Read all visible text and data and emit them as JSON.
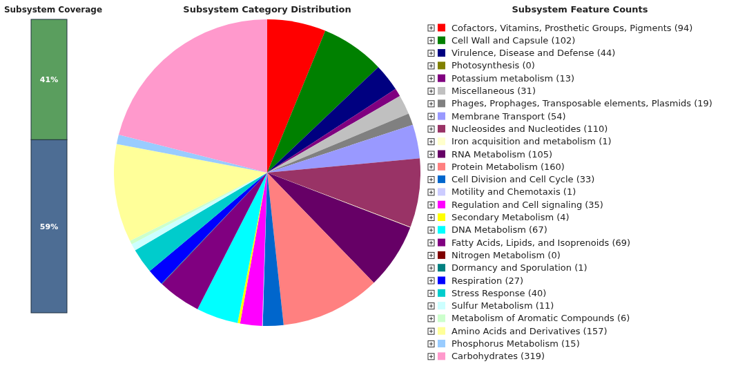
{
  "chart_data": [
    {
      "type": "bar",
      "title": "Subsystem Coverage",
      "stacked": true,
      "categories": [
        null
      ],
      "series": [
        {
          "color": "#4d6d94",
          "values": [
            59
          ],
          "value_labels": [
            "59%"
          ]
        },
        {
          "color": "#5a9e5e",
          "values": [
            41
          ],
          "value_labels": [
            "41%"
          ]
        }
      ]
    },
    {
      "type": "pie",
      "title": "Subsystem Category Distribution",
      "legend_title": "Subsystem Feature Counts",
      "legend": "right",
      "categories": [
        "Cofactors, Vitamins, Prosthetic Groups, Pigments (94)",
        "Cell Wall and Capsule (102)",
        "Virulence, Disease and Defense (44)",
        "Photosynthesis (0)",
        "Potassium metabolism (13)",
        "Miscellaneous (31)",
        "Phages, Prophages, Transposable elements, Plasmids (19)",
        "Membrane Transport (54)",
        "Nucleosides and Nucleotides (110)",
        "Iron acquisition and metabolism (1)",
        "RNA Metabolism (105)",
        "Protein Metabolism (160)",
        "Cell Division and Cell Cycle (33)",
        "Motility and Chemotaxis (1)",
        "Regulation and Cell signaling (35)",
        "Secondary Metabolism (4)",
        "DNA Metabolism (67)",
        "Fatty Acids, Lipids, and Isoprenoids (69)",
        "Nitrogen Metabolism (0)",
        "Dormancy and Sporulation (1)",
        "Respiration (27)",
        "Stress Response (40)",
        "Sulfur Metabolism (11)",
        "Metabolism of Aromatic Compounds (6)",
        "Amino Acids and Derivatives (157)",
        "Phosphorus Metabolism (15)",
        "Carbohydrates (319)"
      ],
      "values": [
        94,
        102,
        44,
        0,
        13,
        31,
        19,
        54,
        110,
        1,
        105,
        160,
        33,
        1,
        35,
        4,
        67,
        69,
        0,
        1,
        27,
        40,
        11,
        6,
        157,
        15,
        319
      ],
      "colors": [
        "#ff0000",
        "#008000",
        "#000080",
        "#808000",
        "#800080",
        "#c0c0c0",
        "#808080",
        "#9999ff",
        "#993366",
        "#ffffcc",
        "#660066",
        "#ff8080",
        "#0066cc",
        "#ccccff",
        "#ff00ff",
        "#ffff00",
        "#00ffff",
        "#800080",
        "#800000",
        "#008080",
        "#0000ff",
        "#00cccc",
        "#ccffff",
        "#ccffcc",
        "#ffff99",
        "#99ccff",
        "#ff99cc"
      ]
    }
  ]
}
